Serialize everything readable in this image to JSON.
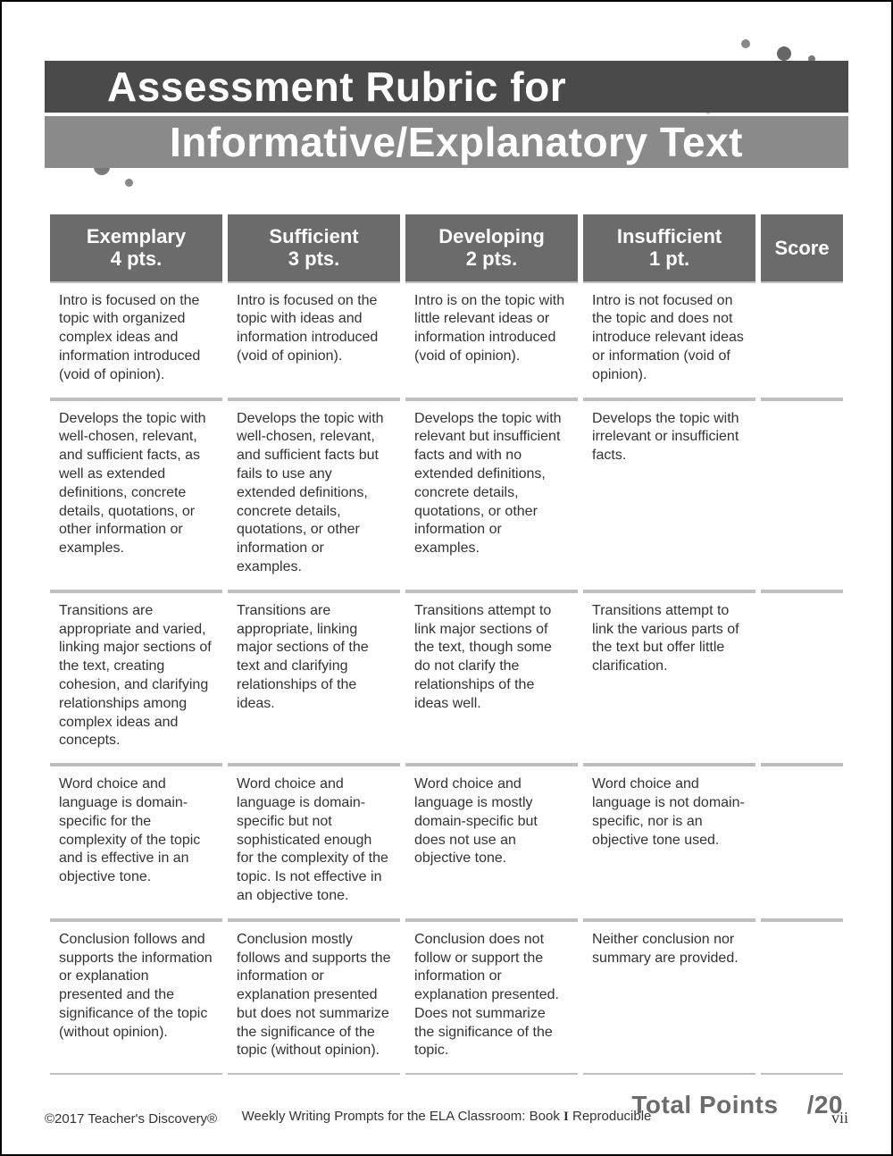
{
  "colors": {
    "header_bg": "#6b6b6b",
    "banner_top_bg": "#4a4a4a",
    "banner_bot_bg": "#8a8a8a",
    "rule": "#bfbfbf",
    "text": "#333333",
    "white": "#ffffff"
  },
  "title": {
    "line1": "Assessment Rubric for",
    "line2": "Informative/Explanatory Text",
    "font_family": "Impact / Arial Narrow",
    "font_size_pt": 34
  },
  "table": {
    "type": "table",
    "columns": [
      {
        "label": "Exemplary",
        "pts": "4 pts.",
        "width_pct": 21
      },
      {
        "label": "Sufficient",
        "pts": "3 pts.",
        "width_pct": 21
      },
      {
        "label": "Developing",
        "pts": "2 pts.",
        "width_pct": 21
      },
      {
        "label": "Insufficient",
        "pts": "1 pt.",
        "width_pct": 21
      },
      {
        "label": "Score",
        "pts": "",
        "width_pct": 10
      }
    ],
    "header_bg": "#6b6b6b",
    "header_font_size_pt": 16,
    "body_font_size_pt": 12,
    "rule_color": "#bfbfbf",
    "rows": [
      [
        "Intro is focused on the topic with organized complex ideas and information introduced (void of opinion).",
        "Intro is focused on the topic with ideas and information introduced (void of opinion).",
        "Intro is on the topic with little relevant ideas or information introduced (void of opinion).",
        "Intro is not focused on the topic and does not introduce relevant ideas or information (void of opinion).",
        ""
      ],
      [
        "Develops the topic with well-chosen, relevant, and sufficient facts, as well as extended definitions, concrete details, quotations, or other information or examples.",
        "Develops the topic with well-chosen, relevant, and sufficient facts but fails to use any extended definitions, concrete details, quotations, or other information or examples.",
        "Develops the topic with relevant but insufficient facts and with no extended definitions, concrete details, quotations, or other information or examples.",
        "Develops the topic with irrelevant or insufficient facts.",
        ""
      ],
      [
        "Transitions are appropriate and varied, linking major sections of the text, creating cohesion, and clarifying relationships among complex ideas and concepts.",
        "Transitions are appropriate, linking major sections of the text and clarifying relationships of the ideas.",
        "Transitions attempt to link major sections of the text, though some do not clarify the relationships of the ideas well.",
        "Transitions attempt to link the various parts of the text but offer little clarification.",
        ""
      ],
      [
        "Word choice and language is domain-specific for the complexity of the topic and is effective in an objective tone.",
        "Word choice and language is domain-specific but not sophisticated enough for the complexity of the topic. Is not effective in an objective tone.",
        "Word choice and language is mostly domain-specific but does not use an objective tone.",
        "Word choice and language is not domain-specific, nor is an objective tone used.",
        ""
      ],
      [
        "Conclusion follows and supports the information or explanation presented and the significance of the topic (without opinion).",
        "Conclusion mostly follows and supports the information or explanation presented but does not summarize the significance of the topic (without opinion).",
        "Conclusion does not follow or support the information or explanation presented. Does not summarize the significance of the topic.",
        "Neither conclusion nor summary are provided.",
        ""
      ]
    ]
  },
  "totals": {
    "label": "Total  Points",
    "value": "/20",
    "font_size_pt": 20,
    "color": "#6b6b6b"
  },
  "footer": {
    "left": "©2017 Teacher's Discovery®",
    "center_prefix": "Weekly Writing Prompts for the ELA Classroom: Book ",
    "center_book": "I",
    "center_suffix": " Reproducible",
    "right": "vii",
    "font_size_pt": 11
  }
}
